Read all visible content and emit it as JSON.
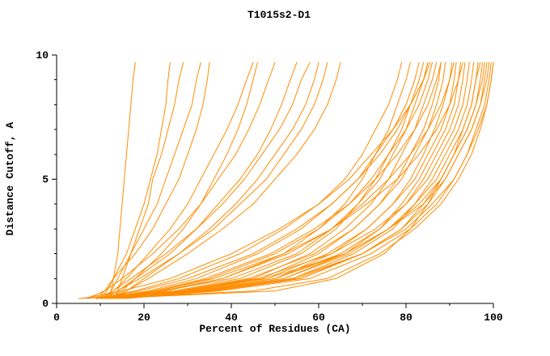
{
  "chart_data": {
    "type": "line",
    "title": "T1015s2-D1",
    "xlabel": "Percent of Residues (CA)",
    "ylabel": "Distance Cutoff, A",
    "xlim": [
      0,
      100
    ],
    "ylim": [
      0,
      10
    ],
    "x_major_ticks": [
      0,
      20,
      40,
      60,
      80,
      100
    ],
    "x_minor_ticks": [
      10,
      30,
      50,
      70,
      90
    ],
    "y_major_ticks": [
      0,
      5,
      10
    ],
    "y_minor_ticks": [
      1,
      2,
      3,
      4,
      6,
      7,
      8,
      9
    ],
    "grid": false,
    "legend": false,
    "line_color": "#ff8c00",
    "axis_color": "#000000",
    "background": "#ffffff",
    "y_levels": [
      0.2,
      0.5,
      1,
      2,
      3,
      4,
      5,
      6,
      7,
      8,
      9,
      9.7
    ],
    "series": [
      [
        12,
        12.5,
        13,
        14,
        14.5,
        15,
        15.5,
        16,
        16.5,
        17,
        17.5,
        18
      ],
      [
        13,
        14,
        15,
        17,
        19,
        21,
        22,
        24,
        25.5,
        27,
        28,
        29
      ],
      [
        10,
        11.5,
        13,
        16,
        18,
        20,
        21.5,
        23,
        24,
        25,
        25.5,
        26
      ],
      [
        11,
        12.5,
        14,
        17,
        20,
        23,
        25,
        27,
        29,
        31,
        32,
        33
      ],
      [
        9,
        11,
        13,
        18,
        22,
        25,
        28,
        30,
        32,
        33.5,
        34.5,
        35
      ],
      [
        10,
        13,
        16,
        21,
        26,
        30,
        33,
        36,
        39,
        41.5,
        43.5,
        45
      ],
      [
        12,
        15,
        18,
        24,
        29,
        33,
        36,
        39,
        41.5,
        43.5,
        45,
        46
      ],
      [
        7,
        11,
        15,
        22,
        28,
        33,
        37,
        41,
        44,
        46.5,
        48.5,
        50
      ],
      [
        11,
        14,
        18,
        26,
        32,
        37,
        42,
        46,
        49,
        51.5,
        53.5,
        55
      ],
      [
        9,
        13,
        17,
        25,
        32,
        38,
        43,
        47,
        51,
        54,
        56,
        58
      ],
      [
        13,
        16,
        20,
        28,
        35,
        41,
        46,
        50,
        54,
        57,
        59,
        60
      ],
      [
        10,
        14,
        19,
        28,
        36,
        42,
        48,
        52,
        56,
        59,
        61,
        62
      ],
      [
        12,
        16,
        21,
        30,
        38,
        45,
        50,
        55,
        59,
        62,
        64,
        65
      ],
      [
        9,
        18,
        28,
        42,
        52,
        60,
        66,
        70,
        73,
        76,
        78,
        79
      ],
      [
        11,
        21,
        32,
        46,
        56,
        63,
        69,
        73,
        77,
        80,
        82,
        83
      ],
      [
        13,
        23,
        35,
        50,
        60,
        67,
        72,
        76,
        80,
        83,
        85,
        86
      ],
      [
        10,
        19,
        30,
        45,
        55,
        63,
        69,
        74,
        78,
        81,
        84,
        85
      ],
      [
        12,
        22,
        34,
        49,
        59,
        67,
        73,
        78,
        82,
        85,
        87,
        88
      ],
      [
        6,
        15,
        26,
        40,
        51,
        60,
        67,
        72,
        77,
        81,
        84,
        85.5
      ],
      [
        14,
        25,
        38,
        53,
        63,
        70,
        76,
        81,
        85,
        88,
        90,
        91
      ],
      [
        11,
        23,
        36,
        52,
        63,
        71,
        78,
        83,
        87,
        90,
        92,
        93
      ],
      [
        10,
        24,
        38,
        52,
        60,
        66,
        70,
        73,
        76,
        78,
        80,
        81
      ],
      [
        12,
        27,
        42,
        56,
        64,
        69,
        73,
        76,
        79,
        81,
        83,
        84
      ],
      [
        7,
        24,
        40,
        55,
        63,
        69,
        74,
        77,
        80,
        82,
        84,
        85
      ],
      [
        14,
        29,
        45,
        58,
        66,
        72,
        76,
        79,
        82,
        84,
        86,
        87
      ],
      [
        11,
        30,
        47,
        60,
        68,
        74,
        78,
        81,
        84,
        86,
        87.5,
        88
      ],
      [
        9,
        28,
        44,
        59,
        68,
        74,
        79,
        82,
        85,
        87,
        88.5,
        89
      ],
      [
        13,
        32,
        50,
        63,
        71,
        77,
        81,
        84,
        86.5,
        88.5,
        90,
        90.5
      ],
      [
        10,
        30,
        48,
        62,
        71,
        77,
        82,
        85,
        88,
        90,
        91,
        91.5
      ],
      [
        15,
        34,
        52,
        66,
        74,
        79,
        83,
        86,
        89,
        91,
        92,
        92.5
      ],
      [
        12,
        32,
        50,
        65,
        74,
        80,
        84,
        87,
        90,
        92,
        93,
        93.5
      ],
      [
        9,
        29,
        46,
        63,
        73,
        80,
        85,
        88,
        91,
        93,
        94,
        94.5
      ],
      [
        14,
        35,
        54,
        68,
        77,
        82,
        86,
        89,
        92,
        94,
        95,
        95.5
      ],
      [
        11,
        33,
        52,
        67,
        76,
        82,
        87,
        90,
        93,
        95,
        96,
        96.5
      ],
      [
        16,
        36,
        56,
        70,
        79,
        84,
        88,
        91,
        94,
        96,
        97,
        97.5
      ],
      [
        10,
        31,
        50,
        66,
        76,
        83,
        88,
        91,
        94,
        96,
        97.5,
        98
      ],
      [
        13,
        34,
        55,
        70,
        79,
        85,
        89,
        92,
        95,
        97,
        98,
        98.5
      ],
      [
        5,
        28,
        48,
        66,
        76,
        84,
        89,
        92,
        95,
        97,
        98.5,
        99
      ],
      [
        15,
        37,
        58,
        72,
        81,
        87,
        91,
        94,
        96,
        98,
        99,
        99.5
      ],
      [
        12,
        34,
        54,
        70,
        80,
        86,
        91,
        94,
        96.5,
        98.5,
        99.5,
        100
      ],
      [
        10,
        45,
        62,
        74,
        82,
        88,
        92,
        95,
        97,
        98.5,
        99.5,
        100
      ],
      [
        12,
        50,
        64,
        75,
        81,
        85,
        88,
        91,
        93,
        95,
        96,
        97
      ]
    ],
    "x_tick_labels": [
      "0",
      "20",
      "40",
      "60",
      "80",
      "100"
    ],
    "y_tick_labels": [
      "0",
      "5",
      "10"
    ]
  }
}
